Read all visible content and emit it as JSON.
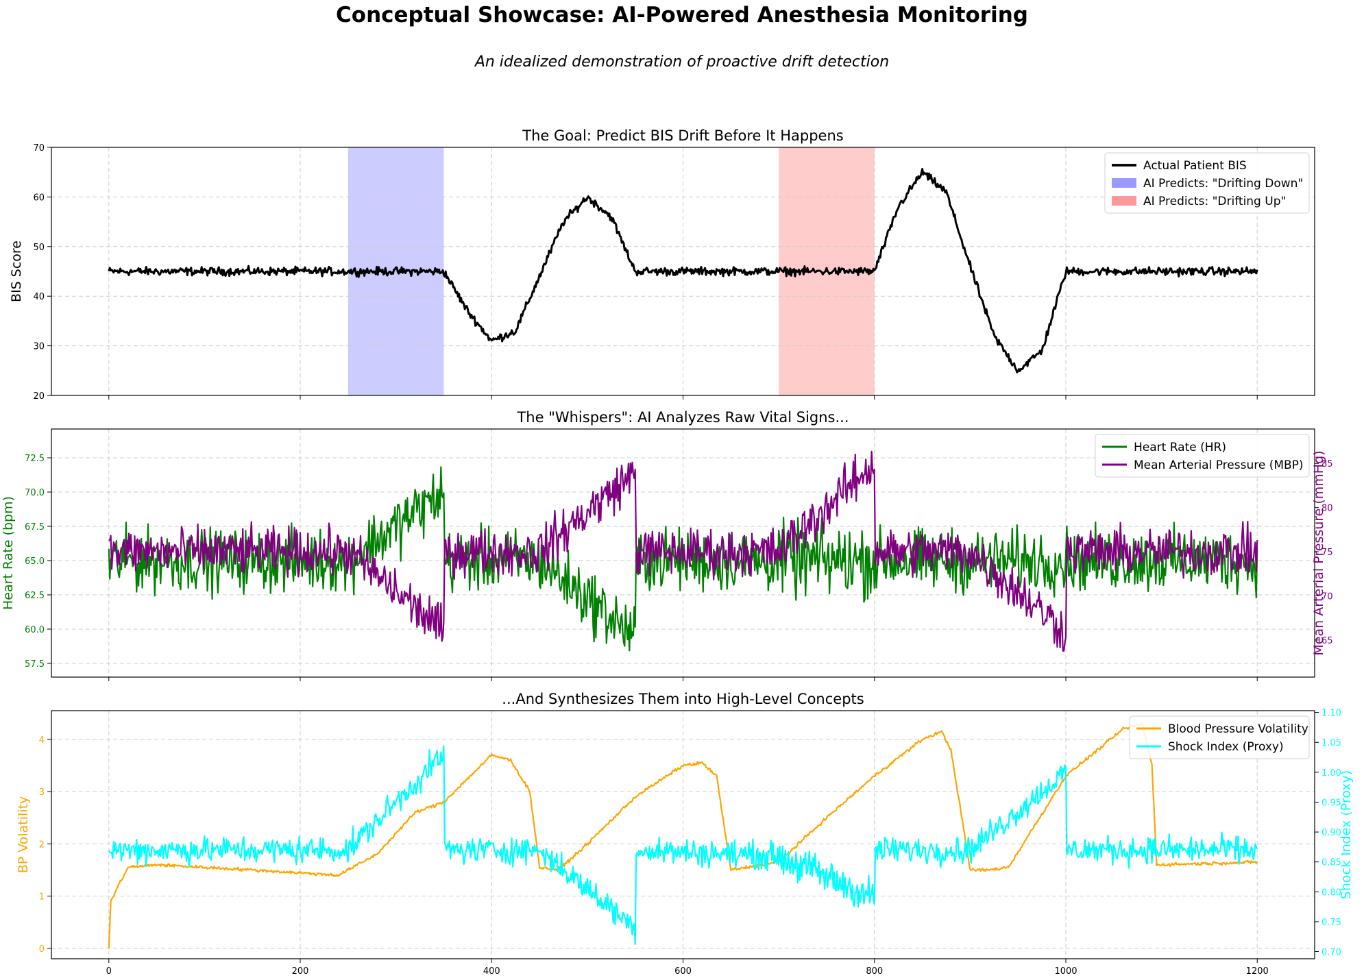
{
  "figure": {
    "title": "Conceptual Showcase: AI-Powered Anesthesia Monitoring",
    "subtitle": "An idealized demonstration of proactive drift detection"
  },
  "colors": {
    "bis": "#000000",
    "drift_down": "#9999ff",
    "drift_up": "#ff9999",
    "hr": "#008000",
    "mbp": "#800080",
    "volatility": "#ffa500",
    "shock_index": "#00ffff",
    "grid": "#cccccc"
  },
  "chart_data": [
    {
      "type": "line",
      "title": "The Goal: Predict BIS Drift Before It Happens",
      "ylabel": "BIS Score",
      "xlim": [
        -60,
        1260
      ],
      "ylim": [
        20,
        70
      ],
      "yticks": [
        20,
        30,
        40,
        50,
        60,
        70
      ],
      "xticks": [
        0,
        200,
        400,
        600,
        800,
        1000,
        1200
      ],
      "grid": true,
      "legend": "top-right",
      "spans": [
        {
          "name": "AI Predicts: \"Drifting Down\"",
          "x": [
            250,
            350
          ],
          "color": "#ccccff",
          "legend_color": "#9999ff"
        },
        {
          "name": "AI Predicts: \"Drifting Up\"",
          "x": [
            700,
            800
          ],
          "color": "#ffcccc",
          "legend_color": "#ff9999"
        }
      ],
      "series": [
        {
          "name": "Actual Patient BIS",
          "color": "#000000",
          "width": 3,
          "noise": 0.8,
          "x": [
            0,
            350,
            375,
            400,
            425,
            450,
            475,
            500,
            525,
            550,
            800,
            825,
            850,
            875,
            900,
            925,
            950,
            975,
            1000,
            1200
          ],
          "y": [
            45,
            45,
            37,
            31,
            33,
            44,
            55,
            60,
            56,
            45,
            45,
            58,
            65,
            61,
            46,
            32,
            25,
            29,
            45,
            45
          ]
        }
      ]
    },
    {
      "type": "line",
      "title": "The \"Whispers\": AI Analyzes Raw Vital Signs...",
      "ylabel": "Heart Rate (bpm)",
      "y2label": "Mean Arterial Pressure (mmHg)",
      "xlim": [
        -60,
        1260
      ],
      "ylim": [
        56.5,
        74.6
      ],
      "yticks": [
        57.5,
        60.0,
        62.5,
        65.0,
        67.5,
        70.0,
        72.5
      ],
      "y2lim": [
        60.8,
        88.9
      ],
      "y2ticks": [
        65,
        70,
        75,
        80,
        85
      ],
      "xticks": [
        0,
        200,
        400,
        600,
        800,
        1000,
        1200
      ],
      "grid": true,
      "legend": "top-right",
      "series": [
        {
          "name": "Heart Rate (HR)",
          "axis": "left",
          "color": "#008000",
          "noise": 2.2,
          "x": [
            0,
            250,
            350,
            351,
            450,
            550,
            551,
            700,
            800,
            801,
            1200
          ],
          "y": [
            65,
            65,
            70,
            65,
            65,
            59.5,
            65,
            65,
            65,
            65,
            65
          ],
          "noise_boost": [
            700,
            800,
            2.6
          ]
        },
        {
          "name": "Mean Arterial Pressure (MBP)",
          "axis": "right",
          "color": "#800080",
          "noise": 2.6,
          "x": [
            0,
            250,
            350,
            351,
            450,
            550,
            551,
            700,
            800,
            801,
            900,
            1000,
            1001,
            1200
          ],
          "y": [
            75,
            75,
            66,
            75,
            75,
            84,
            75,
            75,
            85,
            75,
            75,
            66,
            75,
            75
          ]
        }
      ]
    },
    {
      "type": "line",
      "title": "...And Synthesizes Them into High-Level Concepts",
      "ylabel": "BP Volatility",
      "y2label": "Shock Index (Proxy)",
      "xlim": [
        -60,
        1260
      ],
      "ylim": [
        -0.2,
        4.55
      ],
      "yticks": [
        0,
        1,
        2,
        3,
        4
      ],
      "y2lim": [
        0.688,
        1.103
      ],
      "y2ticks": [
        0.7,
        0.75,
        0.8,
        0.85,
        0.9,
        0.95,
        1.0,
        1.05,
        1.1
      ],
      "xticks": [
        0,
        200,
        400,
        600,
        800,
        1000,
        1200
      ],
      "grid": true,
      "legend": "top-right",
      "series": [
        {
          "name": "Blood Pressure Volatility",
          "axis": "left",
          "color": "#ffa500",
          "noise": 0.03,
          "x": [
            0,
            2,
            10,
            20,
            50,
            150,
            240,
            280,
            320,
            350,
            400,
            420,
            440,
            450,
            470,
            500,
            550,
            600,
            620,
            635,
            650,
            700,
            750,
            800,
            850,
            870,
            880,
            900,
            920,
            940,
            1000,
            1060,
            1080,
            1090,
            1095,
            1200
          ],
          "y": [
            0,
            0.9,
            1.2,
            1.55,
            1.6,
            1.5,
            1.4,
            1.8,
            2.6,
            2.8,
            3.7,
            3.6,
            3.0,
            1.55,
            1.5,
            2.0,
            2.9,
            3.5,
            3.55,
            3.3,
            1.5,
            1.65,
            2.5,
            3.3,
            4.0,
            4.15,
            3.8,
            1.5,
            1.5,
            1.55,
            3.3,
            4.2,
            4.3,
            3.5,
            1.6,
            1.65
          ]
        },
        {
          "name": "Shock Index (Proxy)",
          "axis": "right",
          "color": "#00ffff",
          "noise": 0.022,
          "x": [
            0,
            250,
            350,
            351,
            450,
            550,
            551,
            700,
            800,
            801,
            900,
            1000,
            1001,
            1200
          ],
          "y": [
            0.87,
            0.87,
            1.03,
            0.87,
            0.87,
            0.74,
            0.87,
            0.86,
            0.79,
            0.87,
            0.87,
            1.0,
            0.87,
            0.87
          ],
          "noise_boost": [
            700,
            800,
            0.03
          ]
        }
      ]
    }
  ]
}
